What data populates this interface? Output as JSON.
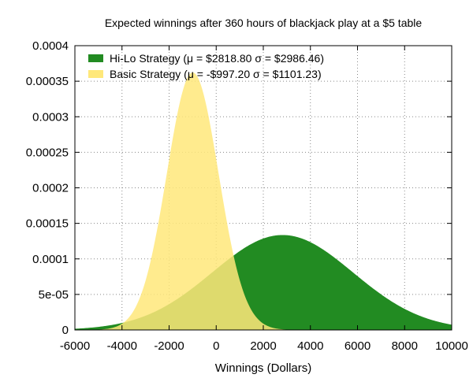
{
  "chart_data": {
    "type": "area",
    "title": "Expected winnings after 360 hours of blackjack play at a $5 table",
    "xlabel": "Winnings (Dollars)",
    "ylabel": "",
    "xlim": [
      -6000,
      10000
    ],
    "ylim": [
      0,
      0.0004
    ],
    "grid": true,
    "legend_position": "top-left",
    "x_ticks": [
      -6000,
      -4000,
      -2000,
      0,
      2000,
      4000,
      6000,
      8000,
      10000
    ],
    "x_tick_labels": [
      "-6000",
      "-4000",
      "-2000",
      "0",
      "2000",
      "4000",
      "6000",
      "8000",
      "10000"
    ],
    "y_ticks": [
      0,
      5e-05,
      0.0001,
      0.00015,
      0.0002,
      0.00025,
      0.0003,
      0.00035,
      0.0004
    ],
    "y_tick_labels": [
      "0",
      "5e-05",
      "0.0001",
      "0.00015",
      "0.0002",
      "0.00025",
      "0.0003",
      "0.00035",
      "0.0004"
    ],
    "series": [
      {
        "name": "Hi-Lo Strategy (μ = $2818.80 σ = $2986.46)",
        "distribution": "normal",
        "mean": 2818.8,
        "sd": 2986.46,
        "color": "#228b22"
      },
      {
        "name": "Basic Strategy (μ = -$997.20 σ = $1101.23)",
        "distribution": "normal",
        "mean": -997.2,
        "sd": 1101.23,
        "color": "#ffe87a"
      }
    ]
  }
}
